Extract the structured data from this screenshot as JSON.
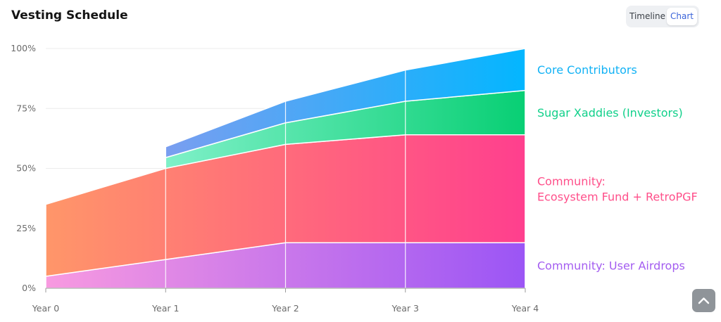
{
  "header": {
    "title": "Vesting Schedule",
    "view_toggle": {
      "timeline_label": "Timeline",
      "chart_label": "Chart",
      "selected": "Chart"
    }
  },
  "chart_data": {
    "type": "area",
    "stacked": true,
    "categories": [
      "Year 0",
      "Year 1",
      "Year 2",
      "Year 3",
      "Year 4"
    ],
    "y_ticks": [
      "0%",
      "25%",
      "50%",
      "75%",
      "100%"
    ],
    "ylim": [
      0,
      100
    ],
    "grid": true,
    "legend_placement": "right",
    "series": [
      {
        "name": "Community: User Airdrops",
        "color": "#a35cf0",
        "values": [
          5,
          12,
          19,
          19,
          19
        ]
      },
      {
        "name": "Community:\nEcosystem Fund + RetroPGF",
        "color": "#ff4f8a",
        "values": [
          30,
          38,
          41,
          45,
          45
        ]
      },
      {
        "name": "Sugar Xaddies (Investors)",
        "color": "#10d08a",
        "values": [
          null,
          4.5,
          9,
          14,
          18.5
        ]
      },
      {
        "name": "Core Contributors",
        "color": "#12b2f5",
        "values": [
          null,
          4.5,
          9,
          13,
          17.5
        ]
      }
    ]
  }
}
